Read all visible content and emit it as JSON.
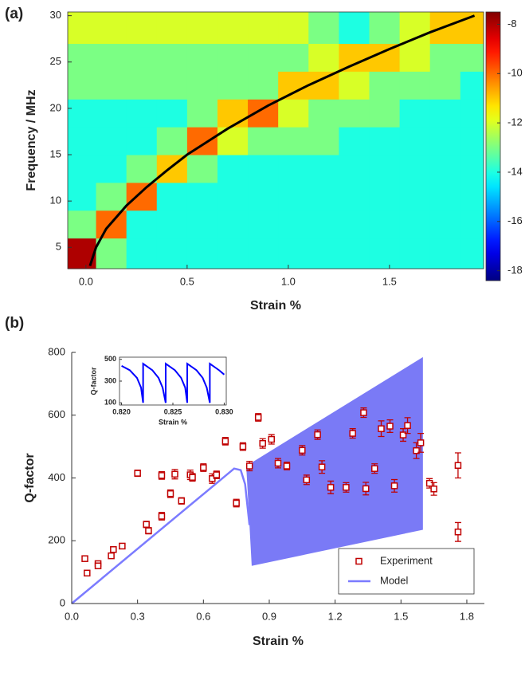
{
  "panel_labels": [
    "(a)",
    "(b)"
  ],
  "chart_data": [
    {
      "type": "heatmap",
      "xlabel": "Strain %",
      "ylabel": "Frequency / MHz",
      "xbins": [
        -0.09,
        0.05,
        0.2,
        0.35,
        0.5,
        0.65,
        0.8,
        0.95,
        1.1,
        1.25,
        1.4,
        1.55,
        1.7,
        1.85,
        1.965
      ],
      "ybins": [
        2.7,
        6,
        9,
        12,
        15,
        18,
        21,
        24,
        27,
        30.4
      ],
      "z": [
        [
          -8,
          -13,
          -14,
          -14,
          -14,
          -14,
          -14,
          -14,
          -14,
          -14,
          -14,
          -14,
          -14,
          -14
        ],
        [
          -13,
          -10,
          -14,
          -14,
          -14,
          -14,
          -14,
          -14,
          -14,
          -14,
          -14,
          -14,
          -14,
          -14
        ],
        [
          -14,
          -13,
          -10,
          -14,
          -14,
          -14,
          -14,
          -14,
          -14,
          -14,
          -14,
          -14,
          -14,
          -14
        ],
        [
          -14,
          -14,
          -13,
          -11,
          -13,
          -14,
          -14,
          -14,
          -14,
          -14,
          -14,
          -14,
          -14,
          -14
        ],
        [
          -14,
          -14,
          -14,
          -13,
          -10,
          -12,
          -13,
          -13,
          -13,
          -14,
          -14,
          -14,
          -14,
          -14
        ],
        [
          -14,
          -14,
          -14,
          -14,
          -13,
          -11,
          -10,
          -12,
          -13,
          -13,
          -13,
          -14,
          -14,
          -14
        ],
        [
          -13,
          -13,
          -13,
          -13,
          -13,
          -13,
          -13,
          -11,
          -11,
          -12,
          -13,
          -13,
          -13,
          -14
        ],
        [
          -13,
          -13,
          -13,
          -13,
          -13,
          -13,
          -13,
          -13,
          -12,
          -11,
          -11,
          -12,
          -13,
          -13
        ],
        [
          -12,
          -12,
          -12,
          -12,
          -12,
          -12,
          -12,
          -12,
          -13,
          -14,
          -13,
          -12,
          -11,
          -11
        ]
      ],
      "clim": [
        -18.4,
        -7.5
      ],
      "cticks": [
        -8,
        -10,
        -12,
        -14,
        -16,
        -18
      ],
      "colormap": "jet",
      "curve": {
        "color": "#000000",
        "x": [
          0.02,
          0.05,
          0.1,
          0.2,
          0.3,
          0.4,
          0.5,
          0.7,
          0.9,
          1.1,
          1.3,
          1.5,
          1.7,
          1.92
        ],
        "y": [
          3,
          5,
          7,
          9.5,
          11.5,
          13.3,
          15,
          17.8,
          20.3,
          22.5,
          24.5,
          26.4,
          28.2,
          30
        ]
      },
      "xlim": [
        -0.09,
        1.965
      ],
      "ylim": [
        2.7,
        30.4
      ],
      "xticks": [
        {
          "value": 0,
          "label": "0.0"
        },
        0.5,
        {
          "value": 1,
          "label": "1.0"
        },
        1.5
      ],
      "yticks": [
        5,
        10,
        15,
        20,
        25,
        30
      ]
    },
    {
      "type": "scatter",
      "xlabel": "Strain %",
      "ylabel": "Q-factor",
      "legend": "lower right",
      "xlim": [
        0,
        1.88
      ],
      "ylim": [
        0,
        800
      ],
      "xticks": [
        {
          "value": 0,
          "label": "0.0"
        },
        0.3,
        0.6,
        0.9,
        1.2,
        1.5,
        1.8
      ],
      "yticks": [
        0,
        200,
        400,
        600,
        800
      ],
      "band": {
        "color": "#6b6bf5",
        "x": [
          0.795,
          0.82,
          1.6
        ],
        "lower": [
          440,
          120,
          235
        ],
        "upper": [
          440,
          449,
          785
        ]
      },
      "series": [
        {
          "name": "Experiment",
          "type": "scatter",
          "color": "#c00000",
          "x": [
            0.06,
            0.07,
            0.12,
            0.12,
            0.18,
            0.19,
            0.23,
            0.3,
            0.34,
            0.35,
            0.41,
            0.41,
            0.45,
            0.47,
            0.5,
            0.54,
            0.55,
            0.6,
            0.64,
            0.66,
            0.7,
            0.75,
            0.78,
            0.81,
            0.85,
            0.87,
            0.91,
            0.94,
            0.98,
            1.05,
            1.07,
            1.12,
            1.14,
            1.18,
            1.25,
            1.28,
            1.33,
            1.34,
            1.38,
            1.41,
            1.45,
            1.47,
            1.51,
            1.53,
            1.57,
            1.59,
            1.63,
            1.65,
            1.76,
            1.76
          ],
          "values": [
            143,
            97,
            127,
            120,
            152,
            172,
            183,
            415,
            252,
            232,
            278,
            408,
            350,
            412,
            327,
            410,
            402,
            433,
            398,
            410,
            517,
            320,
            500,
            438,
            593,
            510,
            523,
            447,
            438,
            488,
            394,
            538,
            435,
            370,
            370,
            542,
            608,
            366,
            430,
            557,
            565,
            375,
            537,
            567,
            487,
            512,
            383,
            365,
            440,
            228
          ],
          "errors": [
            5,
            5,
            8,
            5,
            8,
            8,
            8,
            10,
            10,
            10,
            12,
            12,
            12,
            15,
            10,
            15,
            12,
            12,
            15,
            12,
            12,
            12,
            12,
            15,
            12,
            15,
            15,
            15,
            12,
            15,
            15,
            15,
            20,
            20,
            15,
            15,
            15,
            20,
            15,
            25,
            20,
            20,
            20,
            25,
            25,
            30,
            15,
            20,
            40,
            30
          ]
        },
        {
          "name": "Model",
          "type": "line",
          "color": "#7b7bff",
          "x": [
            0,
            0.74,
            0.77,
            0.79,
            0.81
          ],
          "values": [
            0,
            430,
            425,
            380,
            250
          ]
        }
      ]
    },
    {
      "type": "line",
      "xlabel": "Strain %",
      "ylabel": "Q-factor",
      "color": "#0000ff",
      "xlim": [
        0.8198,
        0.8302
      ],
      "ylim": [
        80,
        520
      ],
      "xticks": [
        {
          "value": 0.82,
          "label": "0.820"
        },
        {
          "value": 0.825,
          "label": "0.825"
        },
        {
          "value": 0.83,
          "label": "0.830"
        }
      ],
      "yticks": [
        100,
        300,
        500
      ],
      "x": [
        0.82,
        0.8208,
        0.8215,
        0.8219,
        0.8221,
        0.8221,
        0.823,
        0.8236,
        0.824,
        0.8243,
        0.8243,
        0.8252,
        0.8258,
        0.8262,
        0.8264,
        0.8264,
        0.8273,
        0.8279,
        0.8283,
        0.8286,
        0.8286,
        0.8295,
        0.83
      ],
      "values": [
        440,
        400,
        330,
        240,
        100,
        460,
        400,
        330,
        240,
        100,
        460,
        400,
        330,
        240,
        100,
        460,
        400,
        330,
        240,
        100,
        460,
        400,
        360
      ]
    }
  ]
}
